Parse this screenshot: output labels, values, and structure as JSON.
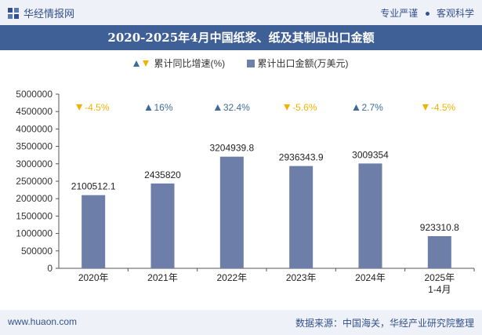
{
  "header": {
    "brand": "华经情报网",
    "tag_left": "专业严谨",
    "tag_right": "客观科学"
  },
  "title": "2020-2025年4月中国纸浆、纸及其制品出口金额",
  "legend": {
    "growth_label": "累计同比增速(%)",
    "amount_label": "累计出口金额(万美元)"
  },
  "footer": {
    "site": "www.huaon.com",
    "source": "数据来源：中国海关，华经产业研究院整理"
  },
  "colors": {
    "bar": "#6d7ea9",
    "up": "#3f6b99",
    "down": "#f0b400",
    "title_bg": "#3f5f97"
  },
  "chart_data": {
    "type": "bar",
    "categories": [
      "2020年",
      "2021年",
      "2022年",
      "2023年",
      "2024年",
      "2025年\n1-4月"
    ],
    "series": [
      {
        "name": "累计出口金额(万美元)",
        "values": [
          2100512.1,
          2435820,
          3204939.8,
          2936343.9,
          3009354,
          923310.8
        ]
      },
      {
        "name": "累计同比增速(%)",
        "values": [
          -4.5,
          16,
          32.4,
          -5.6,
          2.7,
          -4.5
        ]
      }
    ],
    "value_labels": [
      "2100512.1",
      "2435820",
      "3204939.8",
      "2936343.9",
      "3009354",
      "923310.8"
    ],
    "growth_labels": [
      "-4.5%",
      "16%",
      "32.4%",
      "-5.6%",
      "2.7%",
      "-4.5%"
    ],
    "y_ticks": [
      "0",
      "500000",
      "1000000",
      "1500000",
      "2000000",
      "2500000",
      "3000000",
      "3500000",
      "4000000",
      "4500000",
      "5000000"
    ],
    "ylim": [
      0,
      5000000
    ],
    "grid": false,
    "legend_position": "top-center"
  }
}
